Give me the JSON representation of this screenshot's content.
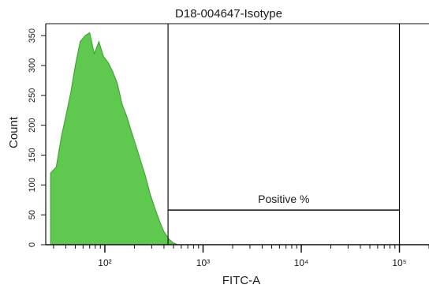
{
  "chart_data": {
    "type": "area",
    "title": "D18-004647-Isotype",
    "xlabel": "FITC-A",
    "ylabel": "Count",
    "xscale": "log",
    "xlim": [
      25,
      200000
    ],
    "ylim": [
      0,
      370
    ],
    "x_tick_values": [
      100,
      1000,
      10000,
      100000
    ],
    "x_tick_labels": [
      "10²",
      "10³",
      "10⁴",
      "10⁵"
    ],
    "y_ticks": [
      0,
      50,
      100,
      150,
      200,
      250,
      300,
      350
    ],
    "fill_color": "#5fc84e",
    "edge_color": "#3a9d2e",
    "grid": false,
    "series": [
      {
        "x": [
          28,
          32,
          36,
          40,
          45,
          50,
          56,
          63,
          70,
          78,
          87,
          97,
          108,
          120,
          134,
          150,
          167,
          186,
          208,
          232,
          259,
          289,
          322,
          359,
          400,
          446,
          497,
          555
        ],
        "y": [
          120,
          130,
          180,
          215,
          255,
          300,
          340,
          350,
          355,
          320,
          340,
          315,
          305,
          290,
          270,
          235,
          215,
          190,
          165,
          140,
          115,
          85,
          62,
          40,
          22,
          10,
          3,
          0
        ]
      }
    ],
    "gates": [
      {
        "label": "Positive %",
        "x_range": [
          440,
          100000
        ],
        "y": 58
      }
    ],
    "vertical_lines": [
      440,
      100000
    ]
  }
}
